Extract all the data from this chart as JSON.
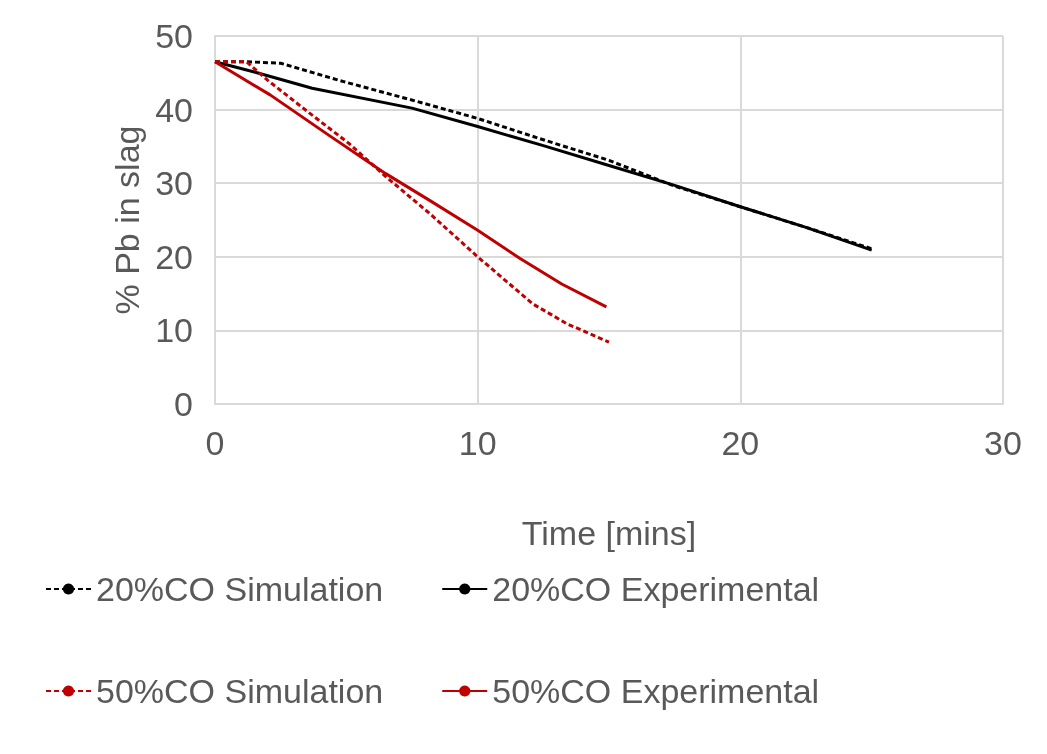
{
  "chart_data": {
    "type": "line",
    "xlabel": "Time [mins]",
    "ylabel": "% Pb in slag",
    "xlim": [
      0,
      30
    ],
    "xticks": [
      0,
      10,
      20,
      30
    ],
    "ylim": [
      0,
      50
    ],
    "yticks": [
      0,
      10,
      20,
      30,
      40,
      50
    ],
    "grid": true,
    "legend": "bottom",
    "marker": "none",
    "series": [
      {
        "name": "20%CO Simulation",
        "color": "#000000",
        "line_style": "dashed",
        "x": [
          0,
          1.2,
          2.5,
          4.9,
          7.7,
          10,
          12.5,
          15,
          17.5,
          20,
          22.5,
          25
        ],
        "values": [
          46.5,
          46.5,
          46.3,
          43.8,
          41.1,
          38.8,
          35.9,
          33.1,
          29.6,
          26.8,
          24.0,
          21.1
        ]
      },
      {
        "name": "20%CO Experimental",
        "color": "#000000",
        "line_style": "solid",
        "x": [
          0,
          1.5,
          3.7,
          7.5,
          10,
          12.5,
          15,
          17.5,
          20,
          22.5,
          25
        ],
        "values": [
          46.5,
          45.1,
          42.9,
          40.2,
          37.7,
          35.1,
          32.4,
          29.7,
          26.8,
          24.0,
          20.9
        ]
      },
      {
        "name": "50%CO Simulation",
        "color": "#c00000",
        "line_style": "dashed",
        "x": [
          0,
          1.2,
          2.0,
          3.5,
          5.1,
          6.5,
          8.2,
          10,
          12.1,
          13.4,
          15
        ],
        "values": [
          46.5,
          46.5,
          44.0,
          39.8,
          35.4,
          30.9,
          25.8,
          20.0,
          13.6,
          10.9,
          8.4
        ]
      },
      {
        "name": "50%CO Experimental",
        "color": "#c00000",
        "line_style": "solid",
        "x": [
          0,
          2.1,
          4.3,
          6.5,
          8.2,
          10,
          11.6,
          13.2,
          14.9
        ],
        "values": [
          46.5,
          42.0,
          36.6,
          31.3,
          27.6,
          23.6,
          19.8,
          16.3,
          13.2
        ]
      }
    ]
  }
}
